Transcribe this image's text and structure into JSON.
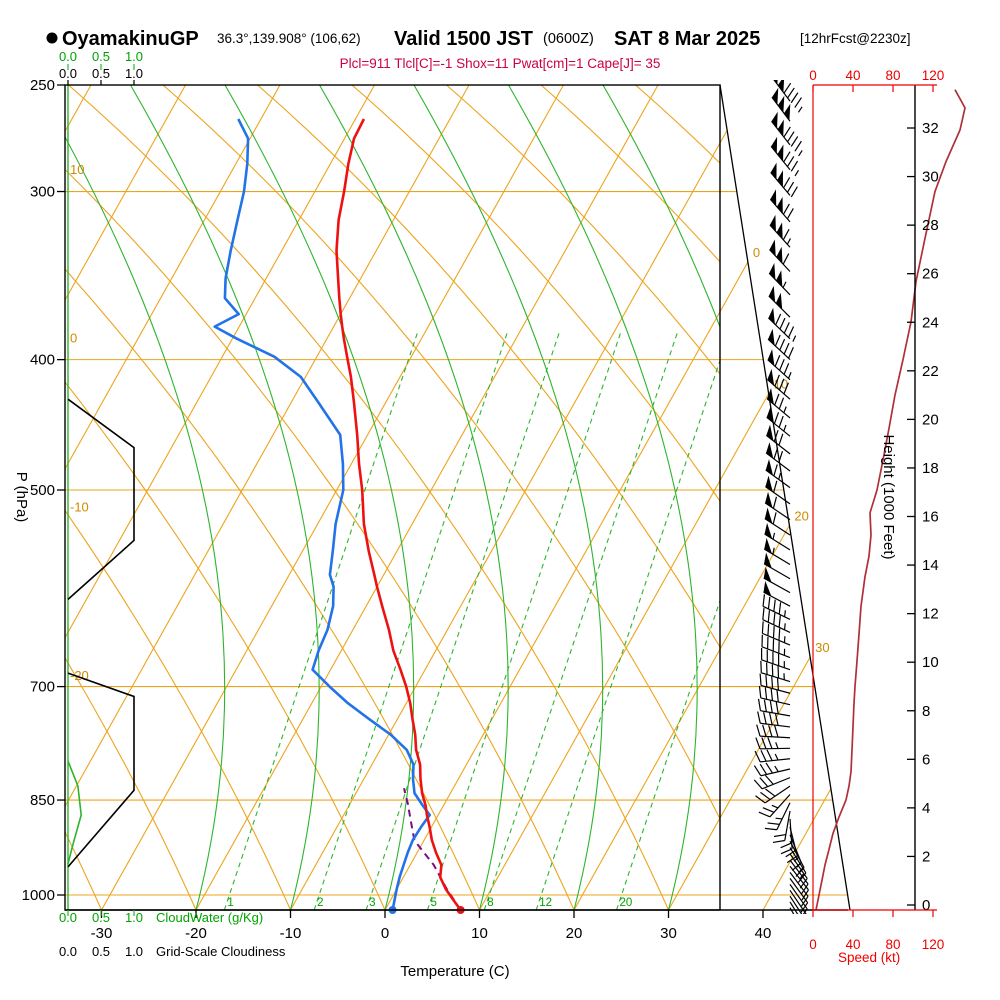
{
  "title": {
    "station": "OyamakinuGP",
    "coords": "36.3°,139.908° (106,62)",
    "valid": "Valid 1500 JST",
    "valid_z": "(0600Z)",
    "date": "SAT 8 Mar 2025",
    "fcst": "[12hrFcst@2230z]"
  },
  "params_line": "Plcl=911 Tlcl[C]=-1 Shox=11 Pwat[cm]=1 Cape[J]= 35",
  "colors": {
    "grid_orange": "#eca41e",
    "label_orange": "#cf8a00",
    "green": "#2db42d",
    "green_text": "#00a300",
    "temp_red": "#ee1111",
    "dew_blue": "#2273e8",
    "parcel_purple": "#7a0d86",
    "wind_maroon": "#b03038",
    "axis_red": "#ee0000",
    "black": "#000000"
  },
  "axes": {
    "pressure": {
      "label": "P (hPa)",
      "ticks": [
        250,
        300,
        400,
        500,
        700,
        850,
        1000
      ]
    },
    "temperature": {
      "label": "Temperature (C)",
      "ticks": [
        -30,
        -20,
        -10,
        0,
        10,
        20,
        30,
        40
      ]
    },
    "height": {
      "label": "Height (1000 Feet)",
      "ticks": [
        0,
        2,
        4,
        6,
        8,
        10,
        12,
        14,
        16,
        18,
        20,
        22,
        24,
        26,
        28,
        30,
        32
      ]
    },
    "speed": {
      "label": "Speed (kt)",
      "ticks": [
        0,
        40,
        80,
        120
      ]
    },
    "cloudwater": {
      "label": "CloudWater (g/Kg)",
      "scale": [
        "0.0",
        "0.5",
        "1.0"
      ]
    },
    "cloudiness": {
      "label": "Grid-Scale Cloudiness",
      "scale": [
        "0.0",
        "0.5",
        "1.0"
      ]
    }
  },
  "chart_data": {
    "type": "skewt_sounding",
    "pressure_range_hpa": [
      250,
      1035
    ],
    "temp_axis_c": [
      -40,
      45
    ],
    "height_axis_kft": [
      0,
      32
    ],
    "speed_axis_kt": [
      0,
      120
    ],
    "sounding": {
      "columns": [
        "pressure_hpa",
        "temperature_c",
        "dewpoint_c"
      ],
      "levels": [
        [
          1026,
          8.0,
          0.8
        ],
        [
          1008,
          6.6,
          0.4
        ],
        [
          990,
          5.2,
          0.0
        ],
        [
          970,
          3.9,
          -0.4
        ],
        [
          950,
          3.3,
          -0.7
        ],
        [
          930,
          2.0,
          -1.0
        ],
        [
          910,
          0.8,
          -1.2
        ],
        [
          890,
          -0.2,
          -1.1
        ],
        [
          872,
          -1.2,
          -0.9
        ],
        [
          858,
          -1.9,
          -2.2
        ],
        [
          840,
          -3.0,
          -3.8
        ],
        [
          820,
          -4.0,
          -4.8
        ],
        [
          800,
          -4.9,
          -5.6
        ],
        [
          780,
          -6.2,
          -7.2
        ],
        [
          760,
          -7.2,
          -9.8
        ],
        [
          740,
          -8.4,
          -13.0
        ],
        [
          720,
          -9.6,
          -16.2
        ],
        [
          700,
          -11.0,
          -19.1
        ],
        [
          680,
          -12.6,
          -21.9
        ],
        [
          658,
          -14.5,
          -22.4
        ],
        [
          635,
          -16.2,
          -22.7
        ],
        [
          610,
          -18.3,
          -23.5
        ],
        [
          590,
          -20.0,
          -24.6
        ],
        [
          578,
          -21.0,
          -25.7
        ],
        [
          555,
          -23.0,
          -26.8
        ],
        [
          530,
          -25.1,
          -28.1
        ],
        [
          500,
          -27.3,
          -29.3
        ],
        [
          478,
          -29.2,
          -30.9
        ],
        [
          455,
          -31.1,
          -32.9
        ],
        [
          430,
          -33.4,
          -37.2
        ],
        [
          412,
          -35.2,
          -40.5
        ],
        [
          398,
          -36.8,
          -44.5
        ],
        [
          386,
          -38.2,
          -49.5
        ],
        [
          378,
          -39.1,
          -52.6
        ],
        [
          370,
          -40.0,
          -50.8
        ],
        [
          360,
          -41.1,
          -53.2
        ],
        [
          348,
          -42.4,
          -54.3
        ],
        [
          332,
          -44.2,
          -55.4
        ],
        [
          315,
          -45.8,
          -56.5
        ],
        [
          300,
          -46.9,
          -57.5
        ],
        [
          286,
          -48.1,
          -58.8
        ],
        [
          274,
          -49.0,
          -60.2
        ],
        [
          265,
          -49.1,
          -62.4
        ]
      ]
    },
    "parcel_path": [
      [
        1026,
        8.0
      ],
      [
        990,
        5.3
      ],
      [
        950,
        2.5
      ],
      [
        911,
        -1.0
      ],
      [
        880,
        -2.6
      ],
      [
        855,
        -3.9
      ],
      [
        833,
        -5.2
      ]
    ],
    "wind_speed_profile_kt": [
      [
        1026,
        3
      ],
      [
        1000,
        6
      ],
      [
        975,
        9
      ],
      [
        950,
        12
      ],
      [
        925,
        16
      ],
      [
        900,
        20
      ],
      [
        875,
        26
      ],
      [
        850,
        33
      ],
      [
        830,
        36
      ],
      [
        810,
        38
      ],
      [
        780,
        39
      ],
      [
        750,
        40
      ],
      [
        720,
        41
      ],
      [
        700,
        42
      ],
      [
        670,
        44
      ],
      [
        640,
        46
      ],
      [
        610,
        48
      ],
      [
        580,
        52
      ],
      [
        560,
        56
      ],
      [
        540,
        58
      ],
      [
        520,
        57
      ],
      [
        500,
        64
      ],
      [
        475,
        70
      ],
      [
        450,
        76
      ],
      [
        425,
        82
      ],
      [
        400,
        90
      ],
      [
        375,
        98
      ],
      [
        350,
        103
      ],
      [
        325,
        112
      ],
      [
        300,
        122
      ],
      [
        285,
        133
      ],
      [
        270,
        147
      ],
      [
        260,
        152
      ],
      [
        252,
        142
      ]
    ],
    "wind_barbs": {
      "columns": [
        "pressure_hpa",
        "speed_kt",
        "direction_deg"
      ],
      "levels": [
        [
          1022,
          4,
          150
        ],
        [
          1012,
          5,
          148
        ],
        [
          1002,
          6,
          147
        ],
        [
          992,
          7,
          146
        ],
        [
          982,
          8,
          145
        ],
        [
          972,
          9,
          144
        ],
        [
          962,
          10,
          143
        ],
        [
          952,
          11,
          142
        ],
        [
          942,
          12,
          143
        ],
        [
          932,
          13,
          145
        ],
        [
          922,
          14,
          148
        ],
        [
          912,
          15,
          152
        ],
        [
          902,
          16,
          158
        ],
        [
          890,
          18,
          166
        ],
        [
          878,
          20,
          176
        ],
        [
          866,
          22,
          190
        ],
        [
          854,
          25,
          206
        ],
        [
          842,
          27,
          222
        ],
        [
          830,
          29,
          236
        ],
        [
          818,
          31,
          248
        ],
        [
          806,
          33,
          257
        ],
        [
          792,
          35,
          264
        ],
        [
          778,
          37,
          269
        ],
        [
          764,
          38,
          273
        ],
        [
          750,
          39,
          277
        ],
        [
          736,
          40,
          280
        ],
        [
          722,
          41,
          283
        ],
        [
          708,
          42,
          285
        ],
        [
          694,
          43,
          287
        ],
        [
          680,
          43,
          289
        ],
        [
          666,
          44,
          291
        ],
        [
          652,
          45,
          293
        ],
        [
          638,
          46,
          295
        ],
        [
          624,
          47,
          296
        ],
        [
          610,
          48,
          298
        ],
        [
          596,
          50,
          299
        ],
        [
          582,
          52,
          300
        ],
        [
          568,
          54,
          301
        ],
        [
          554,
          56,
          302
        ],
        [
          540,
          58,
          303
        ],
        [
          526,
          60,
          304
        ],
        [
          512,
          62,
          305
        ],
        [
          498,
          65,
          306
        ],
        [
          484,
          68,
          307
        ],
        [
          470,
          71,
          308
        ],
        [
          456,
          74,
          309
        ],
        [
          442,
          77,
          310
        ],
        [
          428,
          81,
          311
        ],
        [
          414,
          85,
          312
        ],
        [
          400,
          88,
          313
        ],
        [
          386,
          93,
          314
        ],
        [
          372,
          98,
          315
        ],
        [
          358,
          103,
          316
        ],
        [
          344,
          108,
          317
        ],
        [
          330,
          114,
          318
        ],
        [
          316,
          121,
          319
        ],
        [
          302,
          128,
          320
        ],
        [
          289,
          135,
          321
        ],
        [
          277,
          143,
          322
        ],
        [
          266,
          150,
          323
        ],
        [
          257,
          144,
          323
        ]
      ]
    },
    "cloudiness_profile": [
      [
        [
          428,
          0
        ],
        [
          465,
          1
        ],
        [
          545,
          1
        ],
        [
          603,
          0
        ]
      ],
      [
        [
          684,
          0
        ],
        [
          712,
          1
        ],
        [
          836,
          1
        ],
        [
          953,
          0
        ]
      ]
    ],
    "cloudwater_profile_gkg": [
      [
        795,
        0
      ],
      [
        830,
        0.15
      ],
      [
        872,
        0.2
      ],
      [
        915,
        0.08
      ],
      [
        948,
        0
      ]
    ],
    "mixing_ratio_lines_gkg": {
      "values": [
        1,
        2,
        3,
        5,
        8,
        12,
        20
      ],
      "dewpoint_at_1000hpa_c": [
        -17,
        -7.5,
        -2,
        4.5,
        10.5,
        16,
        24.5
      ]
    },
    "isotherm_labels_left_c": [
      10,
      0,
      -10,
      -20
    ],
    "isotherm_labels_right_c": [
      0,
      10,
      20,
      30
    ]
  }
}
